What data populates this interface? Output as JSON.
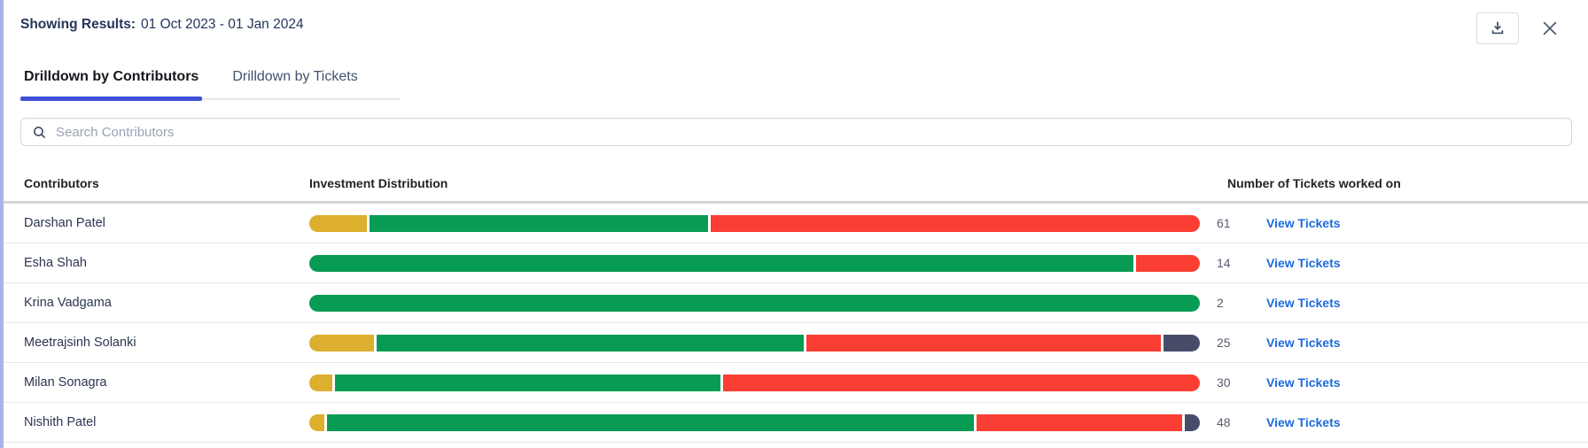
{
  "header": {
    "label": "Showing Results:",
    "date_range": "01 Oct 2023 - 01 Jan 2024"
  },
  "tabs": [
    {
      "label": "Drilldown by Contributors",
      "active": true
    },
    {
      "label": "Drilldown by Tickets",
      "active": false
    }
  ],
  "search": {
    "placeholder": "Search Contributors"
  },
  "table": {
    "columns": [
      "Contributors",
      "Investment Distribution",
      "Number of Tickets worked on"
    ],
    "link_label": "View Tickets",
    "rows": [
      {
        "name": "Darshan Patel",
        "tickets": "61",
        "segments": [
          {
            "color": "yellow",
            "pct": 6.4
          },
          {
            "color": "green",
            "pct": 37.9
          },
          {
            "color": "red",
            "pct": 54.6
          }
        ]
      },
      {
        "name": "Esha Shah",
        "tickets": "14",
        "segments": [
          {
            "color": "green",
            "pct": 92.4
          },
          {
            "color": "red",
            "pct": 7.2
          }
        ]
      },
      {
        "name": "Krina Vadgama",
        "tickets": "2",
        "segments": [
          {
            "color": "green",
            "pct": 100
          }
        ]
      },
      {
        "name": "Meetrajsinh Solanki",
        "tickets": "25",
        "segments": [
          {
            "color": "yellow",
            "pct": 7.2
          },
          {
            "color": "green",
            "pct": 47.9
          },
          {
            "color": "red",
            "pct": 39.6
          },
          {
            "color": "dark",
            "pct": 4.1
          }
        ]
      },
      {
        "name": "Milan Sonagra",
        "tickets": "30",
        "segments": [
          {
            "color": "yellow",
            "pct": 2.6
          },
          {
            "color": "green",
            "pct": 43.0
          },
          {
            "color": "red",
            "pct": 53.2
          }
        ]
      },
      {
        "name": "Nishith Patel",
        "tickets": "48",
        "segments": [
          {
            "color": "yellow",
            "pct": 1.7
          },
          {
            "color": "green",
            "pct": 72.2
          },
          {
            "color": "red",
            "pct": 22.9
          },
          {
            "color": "dark",
            "pct": 1.7
          }
        ]
      }
    ]
  },
  "colors": {
    "yellow": "#DCAF2E",
    "green": "#089B53",
    "red": "#FB3E34",
    "dark": "#474D68",
    "accent_tab": "#4150D8",
    "link": "#1C6BDC",
    "left_border": "#A9B3E9"
  }
}
